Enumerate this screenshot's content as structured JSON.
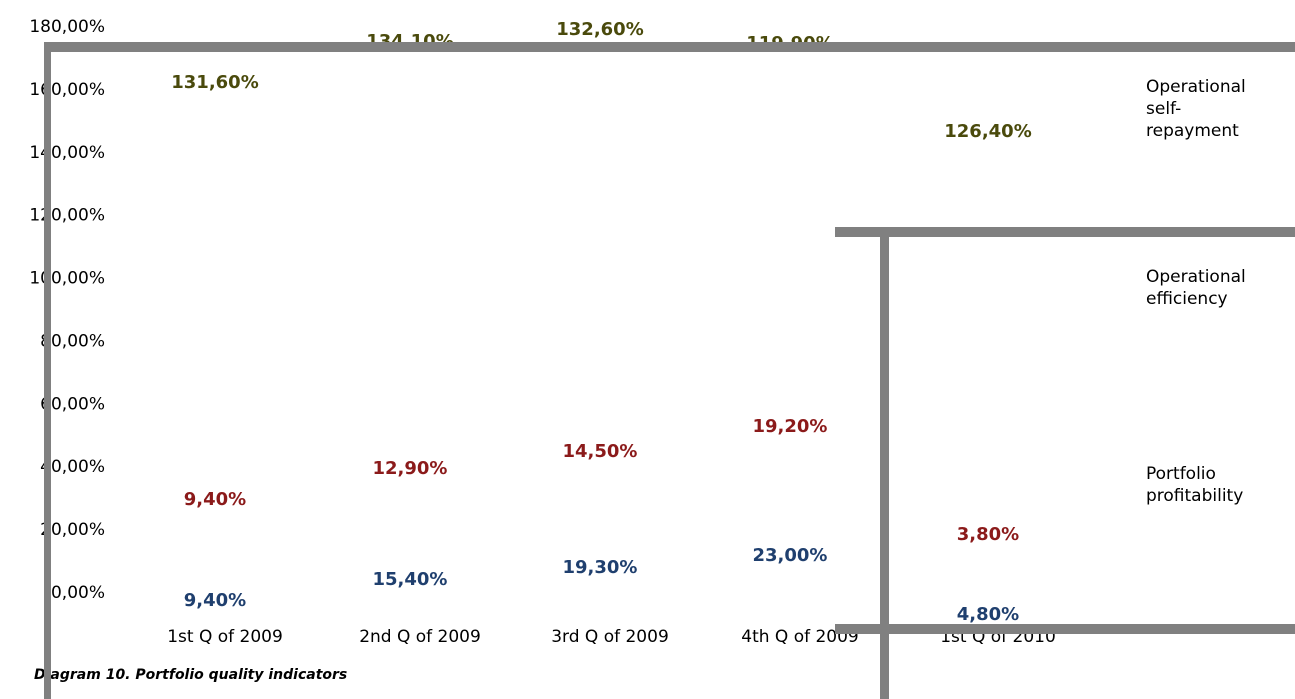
{
  "chart_data": {
    "type": "line",
    "caption": "Diagram 10. Portfolio quality indicators",
    "categories": [
      "1st Q of 2009",
      "2nd Q of 2009",
      "3rd Q of 2009",
      "4th Q of 2009",
      "1st Q of 2010"
    ],
    "series": [
      {
        "name": "Operational self-repayment",
        "color": "#4a4a0c",
        "values": [
          131.6,
          134.1,
          132.6,
          119.9,
          126.4
        ],
        "value_labels": [
          "131,60%",
          "134,10%",
          "132,60%",
          "119,90%",
          "126,40%"
        ]
      },
      {
        "name": "Operational efficiency",
        "color": "#8b1a1a",
        "values": [
          9.4,
          12.9,
          14.5,
          19.2,
          3.8
        ],
        "value_labels": [
          "9,40%",
          "12,90%",
          "14,50%",
          "19,20%",
          "3,80%"
        ]
      },
      {
        "name": "Portfolio profitability",
        "color": "#1f3f6e",
        "values": [
          9.4,
          15.4,
          19.3,
          23.0,
          4.8
        ],
        "value_labels": [
          "9,40%",
          "15,40%",
          "19,30%",
          "23,00%",
          "4,80%"
        ]
      }
    ],
    "ylim": [
      0,
      180
    ],
    "yticks": [
      {
        "value": 0,
        "label": "0,00%"
      },
      {
        "value": 20,
        "label": "20,00%"
      },
      {
        "value": 40,
        "label": "40,00%"
      },
      {
        "value": 60,
        "label": "60,00%"
      },
      {
        "value": 80,
        "label": "80,00%"
      },
      {
        "value": 100,
        "label": "100,00%"
      },
      {
        "value": 120,
        "label": "120,00%"
      },
      {
        "value": 140,
        "label": "140,00%"
      },
      {
        "value": 160,
        "label": "160,00%"
      },
      {
        "value": 180,
        "label": "180,00%"
      }
    ]
  }
}
